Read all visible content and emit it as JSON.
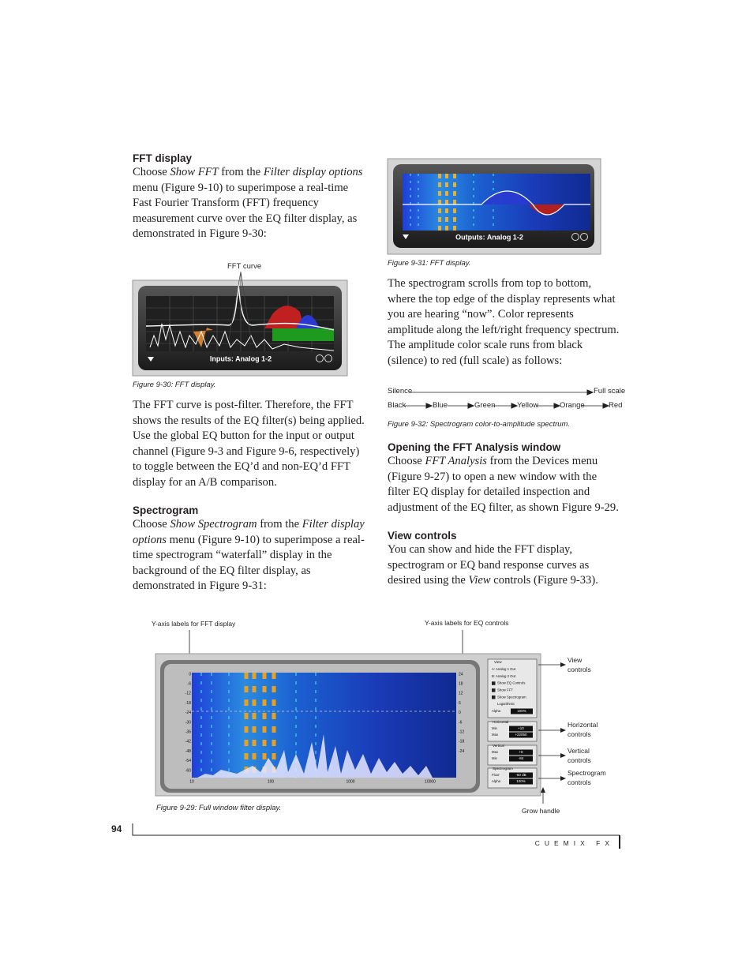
{
  "left_column": {
    "fft_display": {
      "heading": "FFT display",
      "body": [
        "Choose ",
        {
          "text": "Show FFT",
          "em": true
        },
        " from the ",
        {
          "text": "Filter display options",
          "em": true
        },
        " menu (Figure 9-10) to superimpose a real-time Fast Fourier Transform (FFT) frequency measurement curve over the EQ filter display, as demonstrated in Figure 9-30:"
      ]
    },
    "figure_9_30": {
      "callout": "FFT curve",
      "panel_label": "Inputs: Analog 1-2",
      "caption": "Figure 9-30: FFT display."
    },
    "fft_note": [
      "The FFT curve is post-filter. Therefore, the FFT shows the results of the EQ filter(s) being applied. Use the global EQ button for the input or output channel (Figure 9-3 and Figure 9-6, respectively) to toggle between the EQ’d and non-EQ’d FFT display for an A/B comparison."
    ],
    "spectrogram": {
      "heading": "Spectrogram",
      "body": [
        "Choose ",
        {
          "text": "Show Spectrogram",
          "em": true
        },
        " from the ",
        {
          "text": "Filter display options",
          "em": true
        },
        " menu (Figure 9-10) to superimpose a real-time spectrogram “waterfall” display in the background of the EQ filter display, as demonstrated in Figure 9-31:"
      ]
    }
  },
  "right_column": {
    "figure_9_31": {
      "panel_label": "Outputs: Analog 1-2",
      "caption": "Figure 9-31: FFT display."
    },
    "spectrogram_note": [
      "The spectrogram scrolls from top to bottom, where the top edge of the display represents what you are hearing “now”. Color represents amplitude along the left/right frequency spectrum. The amplitude color scale runs from black (silence) to red (full scale) as follows:"
    ],
    "figure_9_32": {
      "start": "Silence",
      "end": "Full scale",
      "colors": [
        "Black",
        "Blue",
        "Green",
        "Yellow",
        "Orange",
        "Red"
      ],
      "caption": "Figure 9-32: Spectrogram color-to-amplitude spectrum."
    },
    "opening": {
      "heading": "Opening the FFT Analysis window",
      "body": [
        "Choose ",
        {
          "text": "FFT Analysis",
          "em": true
        },
        " from the Devices menu (Figure 9-27) to open a new window with the filter EQ display for detailed inspection and adjustment of the EQ filter, as shown Figure 9-29."
      ]
    },
    "view_controls": {
      "heading": "View controls",
      "body": [
        "You can show and hide the FFT display, spectrogram or EQ band response curves as desired using the ",
        {
          "text": "View",
          "em": true
        },
        " controls (Figure 9-33)."
      ]
    }
  },
  "figure_9_29": {
    "callouts": {
      "fft_axis": "Y-axis labels for FFT display",
      "eq_axis": "Y-axis labels for EQ controls",
      "view": "View controls",
      "horizontal": "Horizontal controls",
      "vertical": "Vertical controls",
      "spectrogram": "Spectrogram controls",
      "grow": "Grow handle"
    },
    "fft_axis_labels": [
      "0",
      "-6",
      "-12",
      "-18",
      "-24",
      "-30",
      "-36",
      "-42",
      "-48",
      "-54",
      "-60"
    ],
    "eq_axis_labels": [
      "24",
      "18",
      "12",
      "6",
      "0",
      "-6",
      "-12",
      "-18",
      "-24"
    ],
    "x_labels": [
      "10",
      "100",
      "1000",
      "10000"
    ],
    "view_panel": {
      "title": "View",
      "items": [
        "A: Analog 1 Out",
        "B: Analog 2 Out",
        "Show EQ Controls",
        "Show FFT",
        "Show Spectrogram",
        "Logarithmic"
      ],
      "alpha_label": "Alpha",
      "alpha_value": "100%"
    },
    "horizontal_panel": {
      "title": "Horizontal",
      "min_label": "Min",
      "min_value": "+10",
      "max_label": "Max",
      "max_value": "+22050"
    },
    "vertical_panel": {
      "title": "Vertical",
      "max_label": "Max",
      "max_value": "+0",
      "min_label": "Min",
      "min_value": "-84"
    },
    "spectrogram_panel": {
      "title": "Spectrogram",
      "floor_label": "Floor",
      "floor_value": "-60 dB",
      "alpha_label": "Alpha",
      "alpha_value": "100%"
    },
    "caption": "Figure 9-29: Full window filter display."
  },
  "footer": {
    "page_number": "94",
    "running_title": "CUEMIX FX"
  }
}
